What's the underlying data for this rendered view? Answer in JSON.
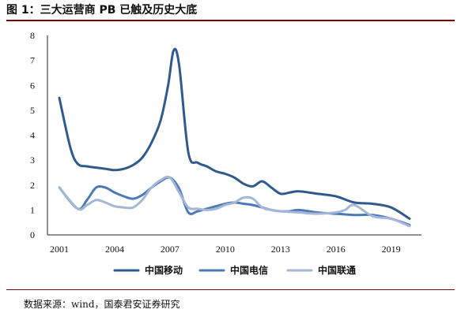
{
  "figure": {
    "title": "图 1：三大运营商 PB 已触及历史大底",
    "source": "数据来源：wind，国泰君安证券研究"
  },
  "chart_data": {
    "type": "line",
    "title": "图 1：三大运营商 PB 已触及历史大底",
    "xlabel": "",
    "ylabel": "",
    "xlim": [
      2001,
      2020
    ],
    "ylim": [
      0,
      8
    ],
    "x_ticks": [
      "2001",
      "2004",
      "2007",
      "2010",
      "2013",
      "2016",
      "2019"
    ],
    "y_ticks": [
      "0",
      "1",
      "2",
      "3",
      "4",
      "5",
      "6",
      "7",
      "8"
    ],
    "grid": false,
    "legend": "bottom",
    "series": [
      {
        "name": "中国移动",
        "color": "#2f5a8c",
        "x": [
          2001,
          2001.6,
          2002,
          2002.5,
          2003,
          2003.5,
          2004,
          2004.5,
          2005,
          2005.5,
          2006,
          2006.5,
          2006.9,
          2007.2,
          2007.5,
          2008,
          2008.5,
          2009,
          2009.5,
          2010,
          2010.5,
          2011,
          2011.5,
          2012,
          2012.5,
          2013,
          2013.5,
          2014,
          2015,
          2016,
          2017,
          2018,
          2019,
          2020
        ],
        "y": [
          5.5,
          3.5,
          2.85,
          2.75,
          2.7,
          2.65,
          2.6,
          2.65,
          2.8,
          3.1,
          3.7,
          4.6,
          6.0,
          7.4,
          6.8,
          3.3,
          2.9,
          2.75,
          2.55,
          2.45,
          2.3,
          2.05,
          1.95,
          2.15,
          1.9,
          1.65,
          1.7,
          1.75,
          1.65,
          1.55,
          1.3,
          1.25,
          1.1,
          0.65
        ]
      },
      {
        "name": "中国电信",
        "color": "#4b7ab5",
        "x": [
          2001,
          2002,
          2002.5,
          2003,
          2003.5,
          2004,
          2004.5,
          2005,
          2005.5,
          2006,
          2006.5,
          2007,
          2007.5,
          2008,
          2008.5,
          2009,
          2009.5,
          2010,
          2010.5,
          2011,
          2011.5,
          2012,
          2012.5,
          2013,
          2013.5,
          2014,
          2015,
          2016,
          2017,
          2018,
          2019,
          2020
        ],
        "y": [
          1.9,
          1.05,
          1.4,
          1.9,
          1.9,
          1.7,
          1.55,
          1.45,
          1.6,
          1.9,
          2.15,
          2.3,
          1.85,
          0.9,
          0.95,
          1.05,
          1.15,
          1.25,
          1.3,
          1.25,
          1.2,
          1.1,
          1.0,
          0.95,
          0.95,
          1.0,
          0.9,
          0.85,
          0.8,
          0.8,
          0.65,
          0.4
        ]
      },
      {
        "name": "中国联通",
        "color": "#a6b6d6",
        "x": [
          2001,
          2002,
          2002.5,
          2003,
          2003.5,
          2004,
          2004.5,
          2005,
          2005.5,
          2006,
          2006.5,
          2007,
          2007.5,
          2008,
          2008.5,
          2009,
          2009.5,
          2010,
          2010.5,
          2011,
          2011.5,
          2012,
          2012.5,
          2013,
          2014,
          2015,
          2016,
          2016.5,
          2017,
          2018,
          2019,
          2020
        ],
        "y": [
          1.9,
          1.05,
          1.2,
          1.4,
          1.3,
          1.15,
          1.1,
          1.1,
          1.4,
          1.9,
          2.2,
          2.3,
          1.7,
          1.1,
          1.05,
          1.0,
          1.05,
          1.2,
          1.3,
          1.5,
          1.45,
          1.1,
          1.0,
          0.95,
          0.9,
          0.85,
          0.9,
          1.0,
          1.2,
          0.75,
          0.65,
          0.35
        ]
      }
    ]
  }
}
